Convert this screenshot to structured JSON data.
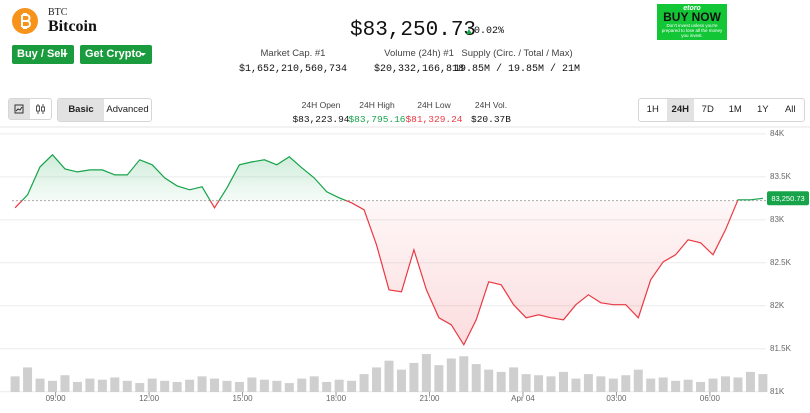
{
  "header": {
    "symbol": "BTC",
    "name": "Bitcoin",
    "price": "$83,250.73",
    "change": "0.02%",
    "buttons": [
      "Buy / Sell",
      "Get Crypto"
    ],
    "stats": [
      {
        "label": "Market Cap. #1",
        "value": "$1,652,210,560,734"
      },
      {
        "label": "Volume (24h) #1",
        "value": "$20,332,166,818"
      },
      {
        "label": "Supply (Circ. / Total / Max)",
        "value": "19.85M / 19.85M / 21M"
      }
    ],
    "ad": {
      "brand": "etoro",
      "cta": "BUY NOW",
      "disclaimer": "Don't invest unless you're prepared to lose all the money you invest."
    }
  },
  "toolbar": {
    "modes": [
      "Basic",
      "Advanced"
    ],
    "active_mode": 0,
    "stats": [
      {
        "label": "24H Open",
        "value": "$83,223.94"
      },
      {
        "label": "24H High",
        "value": "$83,795.16"
      },
      {
        "label": "24H Low",
        "value": "$81,329.24"
      },
      {
        "label": "24H Vol.",
        "value": "$20.37B"
      }
    ],
    "ranges": [
      "1H",
      "24H",
      "7D",
      "1M",
      "1Y",
      "All"
    ],
    "active_range": 1
  },
  "chart_data": {
    "type": "line",
    "x": [
      7.7,
      8.1,
      8.5,
      8.9,
      9.3,
      9.7,
      10.1,
      10.5,
      10.9,
      11.3,
      11.7,
      12.1,
      12.5,
      12.9,
      13.3,
      13.7,
      14.1,
      14.5,
      14.9,
      15.3,
      15.7,
      16.1,
      16.5,
      16.9,
      17.3,
      17.7,
      18.1,
      18.5,
      18.9,
      19.3,
      19.7,
      20.1,
      20.5,
      20.9,
      21.3,
      21.7,
      22.1,
      22.5,
      22.9,
      23.3,
      23.7,
      24.1,
      24.5,
      24.9,
      25.3,
      25.7,
      26.1,
      26.5,
      26.9,
      27.3,
      27.7,
      28.1,
      28.5,
      28.9,
      29.3,
      29.7,
      30.1,
      30.5,
      30.9,
      31.3,
      31.7
    ],
    "values": [
      83140,
      83291,
      83616,
      83756,
      83593,
      83558,
      83581,
      83581,
      83523,
      83523,
      83698,
      83640,
      83488,
      83395,
      83349,
      83384,
      83140,
      83372,
      83640,
      83674,
      83698,
      83640,
      83733,
      83605,
      83488,
      83326,
      83256,
      83198,
      83116,
      82709,
      82186,
      82163,
      82651,
      82186,
      81860,
      81779,
      81546,
      81837,
      82279,
      82244,
      82012,
      81860,
      81895,
      81860,
      81837,
      82012,
      82128,
      82035,
      82012,
      82012,
      81860,
      82302,
      82512,
      82593,
      82767,
      82733,
      82593,
      82884,
      83233,
      83233,
      83250.73
    ],
    "volumes": [
      14,
      22,
      12,
      10,
      15,
      9,
      12,
      11,
      13,
      10,
      8,
      12,
      10,
      9,
      11,
      14,
      12,
      10,
      9,
      13,
      11,
      10,
      8,
      12,
      14,
      9,
      11,
      10,
      16,
      22,
      28,
      20,
      26,
      34,
      24,
      30,
      32,
      25,
      20,
      18,
      22,
      16,
      15,
      14,
      18,
      12,
      16,
      14,
      12,
      15,
      20,
      12,
      13,
      10,
      11,
      9,
      12,
      14,
      13,
      18,
      16
    ],
    "xlim": [
      7.6,
      31.8
    ],
    "xticks": [
      {
        "value": 9,
        "label": "09:00"
      },
      {
        "value": 12,
        "label": "12:00"
      },
      {
        "value": 15,
        "label": "15:00"
      },
      {
        "value": 18,
        "label": "18:00"
      },
      {
        "value": 21,
        "label": "21:00"
      },
      {
        "value": 24,
        "label": "Apr 04"
      },
      {
        "value": 27,
        "label": "03:00"
      },
      {
        "value": 30,
        "label": "06:00"
      }
    ],
    "ylim": [
      80950,
      84080
    ],
    "yticks": [
      {
        "value": 81000,
        "label": "81K"
      },
      {
        "value": 81500,
        "label": "81.5K"
      },
      {
        "value": 82000,
        "label": "82K"
      },
      {
        "value": 82500,
        "label": "82.5K"
      },
      {
        "value": 83000,
        "label": "83K"
      },
      {
        "value": 83500,
        "label": "83.5K"
      },
      {
        "value": 84000,
        "label": "84K"
      }
    ],
    "baseline": 83223.94,
    "current": {
      "value": 83250.73,
      "label": "83,250.73"
    },
    "up_color": "#16a34a",
    "down_color": "#ea3943",
    "volume_color": "#cfcfcf",
    "grid": true
  }
}
